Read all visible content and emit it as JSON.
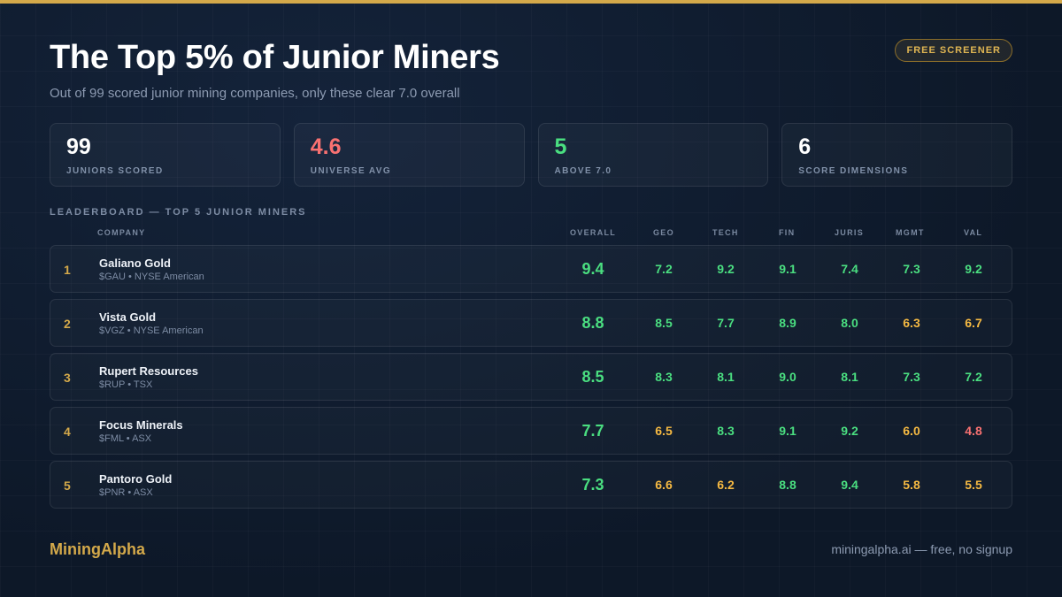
{
  "title": "The Top 5% of Junior Miners",
  "subtitle": "Out of 99 scored junior mining companies, only these clear 7.0 overall",
  "badge": "FREE SCREENER",
  "colors": {
    "accent": "#d4a94a",
    "good": "#4ade80",
    "mid": "#f5b942",
    "bad": "#f87171",
    "neutral": "#ffffff"
  },
  "stats": [
    {
      "value": "99",
      "label": "JUNIORS SCORED",
      "color": "#ffffff"
    },
    {
      "value": "4.6",
      "label": "UNIVERSE AVG",
      "color": "#f87171"
    },
    {
      "value": "5",
      "label": "ABOVE 7.0",
      "color": "#4ade80"
    },
    {
      "value": "6",
      "label": "SCORE DIMENSIONS",
      "color": "#ffffff"
    }
  ],
  "leaderboard": {
    "label": "LEADERBOARD — TOP 5 JUNIOR MINERS",
    "headers": {
      "company": "COMPANY",
      "overall": "OVERALL",
      "geo": "GEO",
      "tech": "TECH",
      "fin": "FIN",
      "juris": "JURIS",
      "mgmt": "MGMT",
      "val": "VAL"
    },
    "rows": [
      {
        "rank": "1",
        "name": "Galiano Gold",
        "ticker": "$GAU • NYSE American",
        "overall": "9.4",
        "geo": "7.2",
        "tech": "9.2",
        "fin": "9.1",
        "juris": "7.4",
        "mgmt": "7.3",
        "val": "9.2"
      },
      {
        "rank": "2",
        "name": "Vista Gold",
        "ticker": "$VGZ • NYSE American",
        "overall": "8.8",
        "geo": "8.5",
        "tech": "7.7",
        "fin": "8.9",
        "juris": "8.0",
        "mgmt": "6.3",
        "val": "6.7"
      },
      {
        "rank": "3",
        "name": "Rupert Resources",
        "ticker": "$RUP • TSX",
        "overall": "8.5",
        "geo": "8.3",
        "tech": "8.1",
        "fin": "9.0",
        "juris": "8.1",
        "mgmt": "7.3",
        "val": "7.2"
      },
      {
        "rank": "4",
        "name": "Focus Minerals",
        "ticker": "$FML • ASX",
        "overall": "7.7",
        "geo": "6.5",
        "tech": "8.3",
        "fin": "9.1",
        "juris": "9.2",
        "mgmt": "6.0",
        "val": "4.8"
      },
      {
        "rank": "5",
        "name": "Pantoro Gold",
        "ticker": "$PNR • ASX",
        "overall": "7.3",
        "geo": "6.6",
        "tech": "6.2",
        "fin": "8.8",
        "juris": "9.4",
        "mgmt": "5.8",
        "val": "5.5"
      }
    ]
  },
  "footer": {
    "brand": "MiningAlpha",
    "link": "miningalpha.ai — free, no signup"
  }
}
